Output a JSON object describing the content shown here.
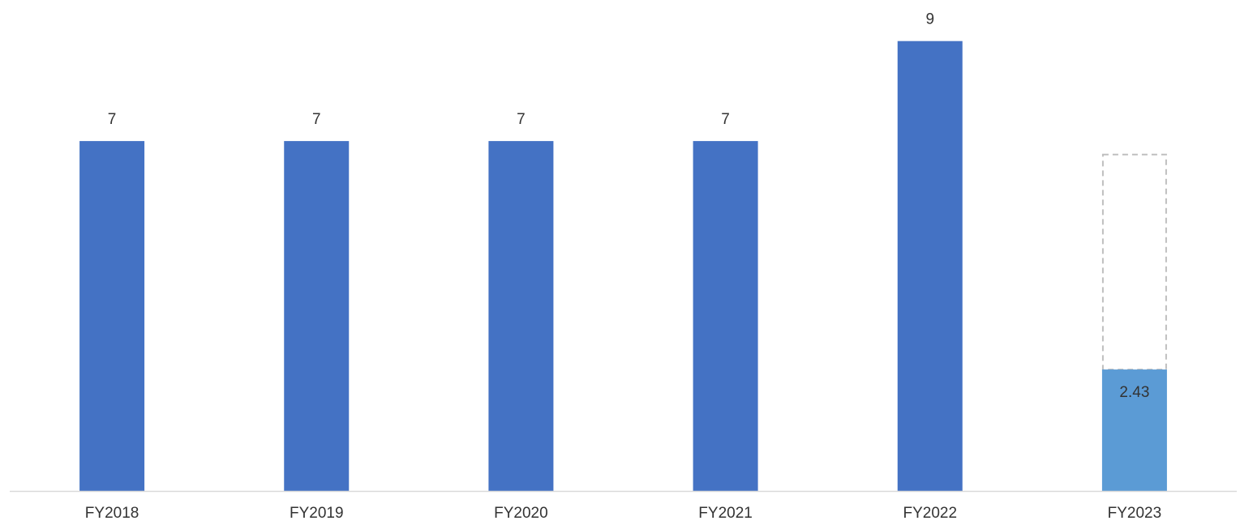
{
  "chart_data": {
    "type": "bar",
    "categories": [
      "FY2018",
      "FY2019",
      "FY2020",
      "FY2021",
      "FY2022",
      "FY2023"
    ],
    "values": [
      7,
      7,
      7,
      7,
      9,
      2.43
    ],
    "data_labels": [
      "7",
      "7",
      "7",
      "7",
      "9",
      "2.43"
    ],
    "projected": {
      "category": "FY2023",
      "value": 6.73,
      "style": "dashed-outline"
    },
    "title": "",
    "xlabel": "",
    "ylabel": "",
    "ylim": [
      0,
      9
    ],
    "grid": false,
    "legend": "none",
    "colors": {
      "bar": "#4472C4",
      "current_bar": "#5B9BD5",
      "projected_outline": "#BFBFBF",
      "axis": "#D9D9D9",
      "text": "#333333"
    }
  }
}
